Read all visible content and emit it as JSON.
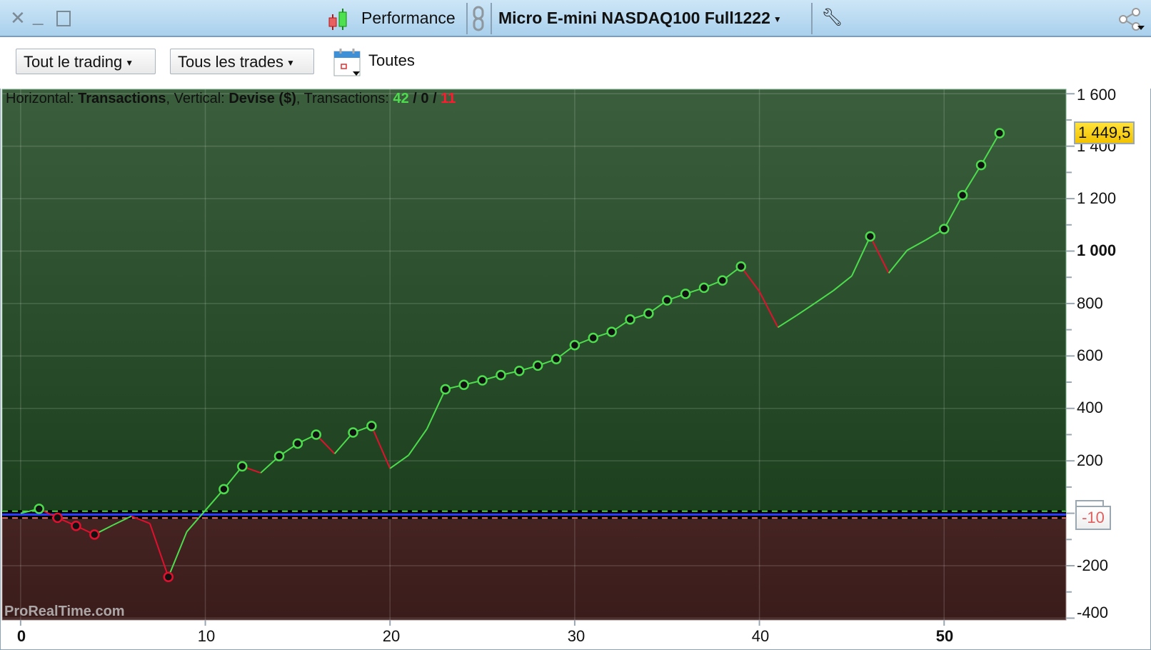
{
  "window": {
    "controls": {
      "close": "close-icon",
      "minimize": "minimize-icon",
      "maximize": "maximize-icon"
    },
    "tab_title": "Performance",
    "instrument": "Micro E-mini NASDAQ100 Full1222"
  },
  "toolbar": {
    "period_select": "Tout le trading",
    "trades_select": "Tous les trades",
    "date_label": "Toutes"
  },
  "chart_info": {
    "h_label": "Horizontal: ",
    "h_value": "Transactions",
    "v_label": ", Vertical: ",
    "v_value": "Devise ($)",
    "t_label": ", Transactions: ",
    "winners": "42",
    "sep1": " / ",
    "neutral": "0",
    "sep2": " / ",
    "losers": "11"
  },
  "watermark": "ProRealTime.com",
  "current_value_label": "1 449,5",
  "zero_label": "-10",
  "chart_data": {
    "type": "line",
    "xlabel": "",
    "ylabel": "",
    "xlim": [
      -1,
      56.6
    ],
    "ylim": [
      -407,
      1617
    ],
    "grid": true,
    "x_ticks": [
      "0",
      "10",
      "20",
      "30",
      "40",
      "50"
    ],
    "y_ticks": [
      "1 600",
      "1 400",
      "1 200",
      "1 000",
      "800",
      "600",
      "400",
      "200",
      "-200",
      "-400"
    ],
    "x": [
      0,
      1,
      2,
      3,
      4,
      5,
      6,
      7,
      8,
      9,
      10,
      11,
      12,
      13,
      14,
      15,
      16,
      17,
      18,
      19,
      20,
      21,
      22,
      23,
      24,
      25,
      26,
      27,
      28,
      29,
      30,
      31,
      32,
      33,
      34,
      35,
      36,
      37,
      38,
      39,
      40,
      41,
      42,
      43,
      44,
      45,
      46,
      47,
      48,
      49,
      50,
      51,
      52,
      53
    ],
    "y": [
      0,
      17,
      -17,
      -48,
      -81,
      -45,
      -11,
      -39,
      -243,
      -70,
      11,
      92,
      179,
      154,
      218,
      266,
      300,
      227,
      308,
      333,
      171,
      221,
      322,
      473,
      490,
      507,
      527,
      543,
      563,
      588,
      641,
      669,
      692,
      739,
      762,
      812,
      837,
      860,
      888,
      941,
      846,
      709,
      754,
      801,
      849,
      905,
      1056,
      916,
      1003,
      1042,
      1084,
      1213,
      1328,
      1449.5
    ],
    "markers": [
      1,
      2,
      3,
      4,
      8,
      11,
      12,
      14,
      15,
      16,
      18,
      19,
      23,
      24,
      25,
      26,
      27,
      28,
      29,
      30,
      31,
      32,
      33,
      34,
      35,
      36,
      37,
      38,
      39,
      46,
      50,
      51,
      52,
      53
    ],
    "colors": {
      "up": "#4ddc4d",
      "down": "#e0102e",
      "profit_bg": "#2a4d2c",
      "loss_bg": "#3e2020",
      "zero_line": "#2b3bff",
      "current_value": "#ffd400"
    }
  }
}
